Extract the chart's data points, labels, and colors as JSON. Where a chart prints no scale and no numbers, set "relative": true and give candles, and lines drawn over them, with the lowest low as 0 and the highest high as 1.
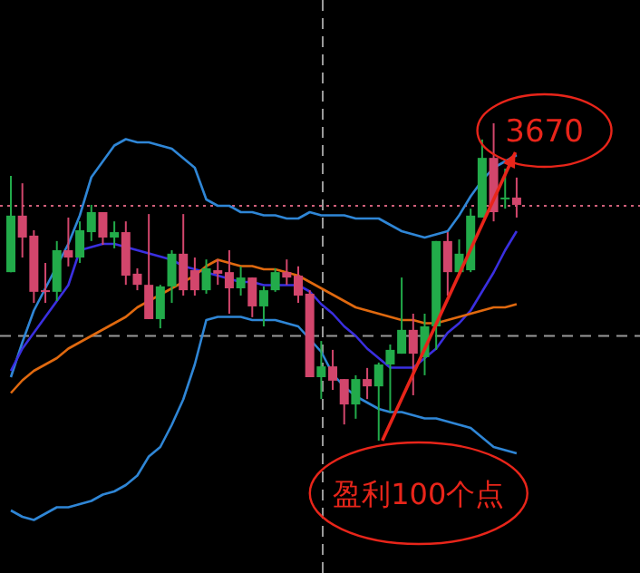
{
  "chart_data": {
    "type": "candlestick",
    "relative": true,
    "categories": [
      null,
      null,
      null,
      null,
      null,
      null,
      null,
      null,
      null,
      null,
      null,
      null,
      null,
      null,
      null,
      null,
      null,
      null,
      null,
      null,
      null,
      null,
      null,
      null,
      null,
      null,
      null,
      null,
      null,
      null,
      null,
      null,
      null,
      null,
      null,
      null,
      null,
      null,
      null,
      null,
      null,
      null,
      null,
      null,
      null
    ],
    "ohlc": [
      [
        0.531,
        0.834,
        0.531,
        0.709
      ],
      [
        0.709,
        0.811,
        0.577,
        0.64
      ],
      [
        0.646,
        0.663,
        0.434,
        0.469
      ],
      [
        0.474,
        0.56,
        0.434,
        0.469
      ],
      [
        0.469,
        0.629,
        0.44,
        0.6
      ],
      [
        0.6,
        0.703,
        0.549,
        0.577
      ],
      [
        0.577,
        0.691,
        0.56,
        0.663
      ],
      [
        0.657,
        0.743,
        0.629,
        0.72
      ],
      [
        0.72,
        0.72,
        0.617,
        0.64
      ],
      [
        0.64,
        0.691,
        0.606,
        0.657
      ],
      [
        0.657,
        0.691,
        0.491,
        0.52
      ],
      [
        0.526,
        0.543,
        0.474,
        0.491
      ],
      [
        0.491,
        0.714,
        0.383,
        0.383
      ],
      [
        0.383,
        0.491,
        0.354,
        0.486
      ],
      [
        0.486,
        0.6,
        0.434,
        0.589
      ],
      [
        0.589,
        0.714,
        0.457,
        0.474
      ],
      [
        0.537,
        0.577,
        0.457,
        0.474
      ],
      [
        0.474,
        0.571,
        0.463,
        0.543
      ],
      [
        0.537,
        0.571,
        0.491,
        0.526
      ],
      [
        0.531,
        0.6,
        0.4,
        0.48
      ],
      [
        0.48,
        0.549,
        0.457,
        0.514
      ],
      [
        0.514,
        0.514,
        0.389,
        0.423
      ],
      [
        0.423,
        0.486,
        0.36,
        0.474
      ],
      [
        0.474,
        0.543,
        0.469,
        0.531
      ],
      [
        0.531,
        0.571,
        0.491,
        0.514
      ],
      [
        0.52,
        0.549,
        0.434,
        0.457
      ],
      [
        0.463,
        0.474,
        0.2,
        0.2
      ],
      [
        0.2,
        0.314,
        0.131,
        0.234
      ],
      [
        0.234,
        0.286,
        0.16,
        0.189
      ],
      [
        0.194,
        0.194,
        0.051,
        0.114
      ],
      [
        0.114,
        0.206,
        0.069,
        0.194
      ],
      [
        0.194,
        0.229,
        0.131,
        0.171
      ],
      [
        0.171,
        0.246,
        0,
        0.24
      ],
      [
        0.24,
        0.303,
        0.091,
        0.286
      ],
      [
        0.274,
        0.514,
        0.274,
        0.349
      ],
      [
        0.349,
        0.4,
        0.143,
        0.274
      ],
      [
        0.263,
        0.4,
        0.206,
        0.36
      ],
      [
        0.36,
        0.629,
        0.286,
        0.629
      ],
      [
        0.629,
        0.657,
        0.457,
        0.531
      ],
      [
        0.531,
        0.634,
        0.52,
        0.589
      ],
      [
        0.537,
        0.731,
        0.531,
        0.709
      ],
      [
        0.703,
        0.949,
        0.703,
        0.891
      ],
      [
        0.891,
        1,
        0.691,
        0.72
      ],
      [
        0.766,
        0.857,
        0.731,
        0.766
      ],
      [
        0.766,
        0.829,
        0.703,
        0.743
      ]
    ],
    "series": [
      {
        "type": "line",
        "color": "#2f86d6",
        "values": [
          0.2,
          0.31,
          0.41,
          0.48,
          0.55,
          0.62,
          0.71,
          0.83,
          0.88,
          0.93,
          0.95,
          0.94,
          0.94,
          0.93,
          0.92,
          0.89,
          0.86,
          0.76,
          0.74,
          0.74,
          0.72,
          0.72,
          0.71,
          0.71,
          0.7,
          0.7,
          0.72,
          0.71,
          0.71,
          0.71,
          0.7,
          0.7,
          0.7,
          0.68,
          0.66,
          0.65,
          0.64,
          0.65,
          0.66,
          0.71,
          0.77,
          0.82,
          0.86,
          0.88,
          0.9
        ]
      },
      {
        "type": "line",
        "color": "#2f86d6",
        "values": [
          -0.22,
          -0.24,
          -0.25,
          -0.23,
          -0.21,
          -0.21,
          -0.2,
          -0.19,
          -0.17,
          -0.16,
          -0.14,
          -0.11,
          -0.05,
          -0.02,
          0.05,
          0.13,
          0.24,
          0.38,
          0.39,
          0.39,
          0.39,
          0.38,
          0.38,
          0.38,
          0.37,
          0.36,
          0.32,
          0.28,
          0.21,
          0.17,
          0.14,
          0.12,
          0.1,
          0.09,
          0.09,
          0.08,
          0.07,
          0.07,
          0.06,
          0.05,
          0.04,
          0.01,
          -0.02,
          -0.03,
          -0.04
        ]
      },
      {
        "type": "line",
        "color": "#3a2fe0",
        "values": [
          0.22,
          0.29,
          0.34,
          0.39,
          0.44,
          0.49,
          0.6,
          0.61,
          0.62,
          0.62,
          0.61,
          0.6,
          0.59,
          0.58,
          0.57,
          0.55,
          0.54,
          0.53,
          0.52,
          0.51,
          0.5,
          0.5,
          0.49,
          0.49,
          0.49,
          0.49,
          0.47,
          0.43,
          0.4,
          0.36,
          0.33,
          0.29,
          0.26,
          0.23,
          0.23,
          0.23,
          0.26,
          0.29,
          0.34,
          0.37,
          0.41,
          0.47,
          0.53,
          0.6,
          0.66
        ]
      },
      {
        "type": "line",
        "color": "#e0690f",
        "values": [
          0.15,
          0.19,
          0.22,
          0.24,
          0.26,
          0.29,
          0.31,
          0.33,
          0.35,
          0.37,
          0.39,
          0.42,
          0.44,
          0.46,
          0.48,
          0.5,
          0.52,
          0.55,
          0.57,
          0.56,
          0.55,
          0.55,
          0.54,
          0.54,
          0.53,
          0.52,
          0.5,
          0.48,
          0.46,
          0.44,
          0.42,
          0.41,
          0.4,
          0.39,
          0.38,
          0.38,
          0.37,
          0.37,
          0.38,
          0.39,
          0.4,
          0.41,
          0.42,
          0.42,
          0.43
        ]
      }
    ],
    "ref_lines": [
      {
        "axis": "y",
        "value": 0.74,
        "color": "#d0607a",
        "line_style": "dotted"
      },
      {
        "axis": "y",
        "value": 0.33,
        "color": "#9a9a9a",
        "line_style": "dashed"
      }
    ],
    "annotations": [
      "3670",
      "盈利100个点"
    ]
  }
}
